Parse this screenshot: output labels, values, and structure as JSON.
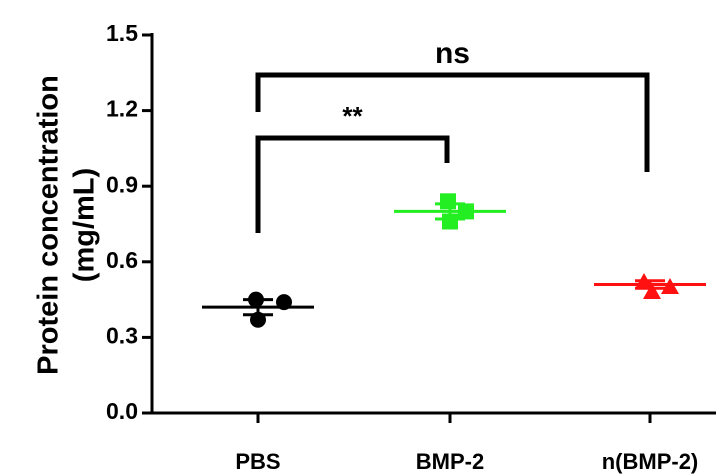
{
  "chart_data": {
    "type": "dot_plot",
    "y_label": [
      "Protein concentration",
      "(mg/mL)"
    ],
    "categories": [
      "PBS",
      "BMP-2",
      "n(BMP-2)"
    ],
    "series": [
      {
        "name": "PBS",
        "color": "#000000",
        "marker": "circle",
        "values": [
          0.45,
          0.44,
          0.37
        ],
        "mean": 0.42,
        "error": 0.03
      },
      {
        "name": "BMP-2",
        "color": "#22ee22",
        "marker": "square",
        "values": [
          0.84,
          0.8,
          0.76
        ],
        "mean": 0.8,
        "error": 0.03
      },
      {
        "name": "n(BMP-2)",
        "color": "#ff1111",
        "marker": "triangle",
        "values": [
          0.52,
          0.5,
          0.48
        ],
        "mean": 0.51,
        "error": 0.015
      }
    ],
    "ylim": [
      0,
      1.5
    ],
    "yticks": [
      {
        "value": 0,
        "label": "0.0"
      },
      0.3,
      0.6,
      0.9,
      1.2,
      1.5
    ],
    "annotations": [
      {
        "text": "**"
      },
      {
        "text": "ns"
      }
    ]
  }
}
